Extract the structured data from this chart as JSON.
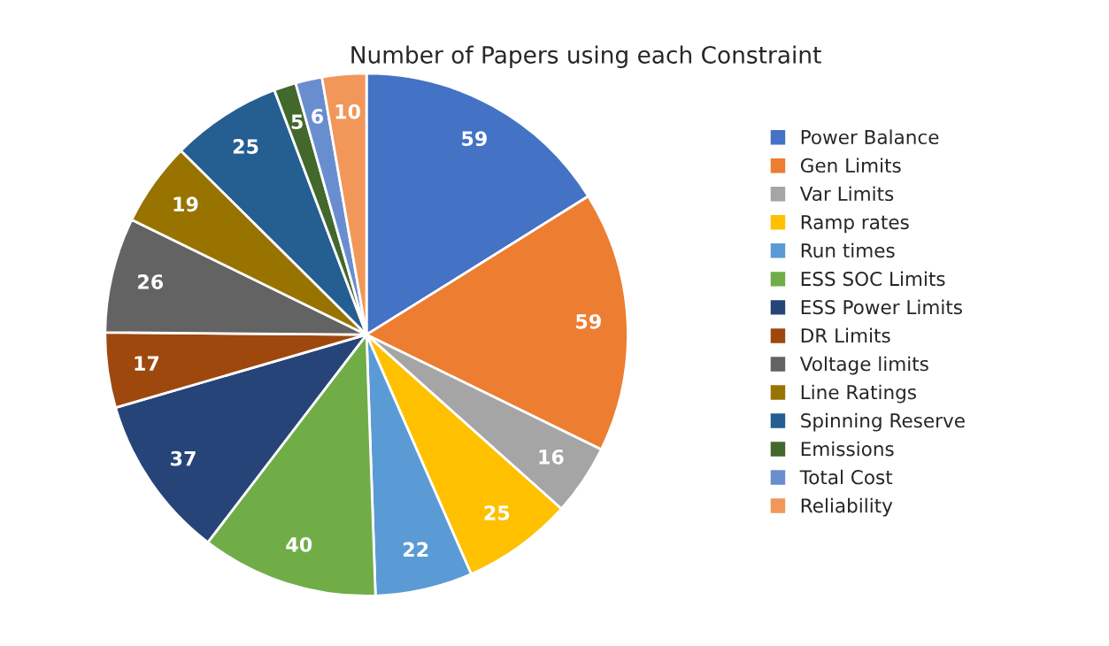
{
  "chart_data": {
    "type": "pie",
    "title": "Number of Papers using each Constraint",
    "categories": [
      "Power Balance",
      "Gen Limits",
      "Var Limits",
      "Ramp rates",
      "Run times",
      "ESS SOC Limits",
      "ESS Power Limits",
      "DR Limits",
      "Voltage limits",
      "Line Ratings",
      "Spinning Reserve",
      "Emissions",
      "Total Cost",
      "Reliability"
    ],
    "values": [
      59,
      59,
      16,
      25,
      22,
      40,
      37,
      17,
      26,
      19,
      25,
      5,
      6,
      10
    ],
    "colors": [
      "#4472c4",
      "#ed7d31",
      "#a5a5a5",
      "#ffc000",
      "#5b9bd5",
      "#70ad47",
      "#264478",
      "#9e480e",
      "#636363",
      "#997300",
      "#255e91",
      "#43682b",
      "#698ed0",
      "#f1975a"
    ],
    "data_labels": true,
    "legend": "right"
  }
}
